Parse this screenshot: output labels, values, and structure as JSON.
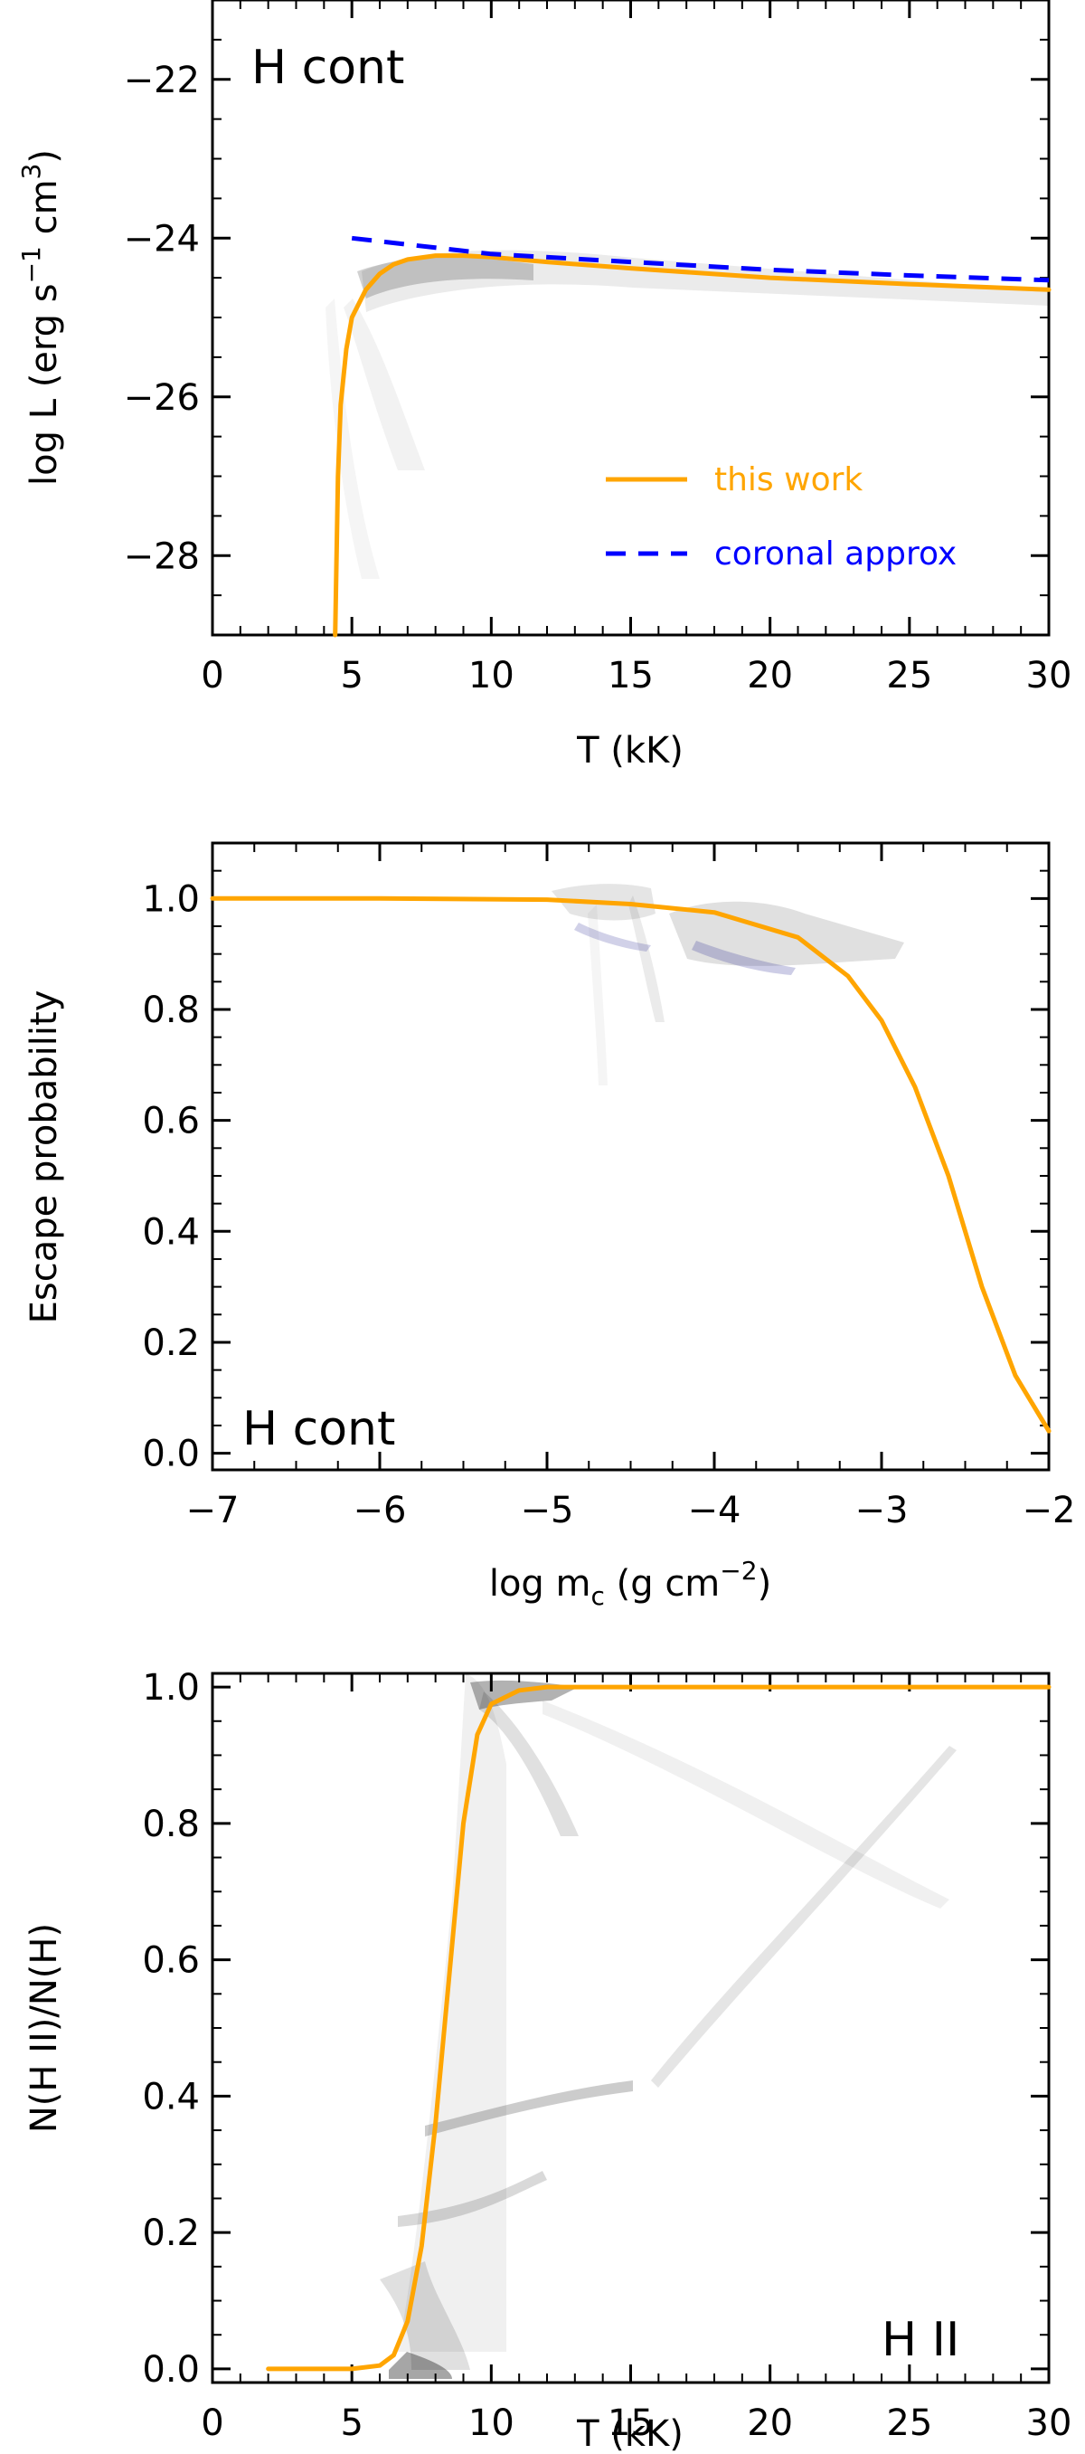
{
  "chart_data": [
    {
      "type": "line",
      "panel_label": "H cont",
      "xlabel": "T (kK)",
      "ylabel": "log L (erg s^-1 cm^3)",
      "ylabel_parts": {
        "pre": "log L (erg s",
        "sup1": "−1",
        "mid": " cm",
        "sup2": "3",
        "post": ")"
      },
      "xlim": [
        0,
        30
      ],
      "ylim": [
        -29,
        -21
      ],
      "x_ticks": [
        0,
        5,
        10,
        15,
        20,
        25,
        30
      ],
      "x_tick_labels": [
        "0",
        "5",
        "10",
        "15",
        "20",
        "25",
        "30"
      ],
      "y_ticks": [
        -28,
        -26,
        -24,
        -22
      ],
      "y_tick_labels": [
        "−28",
        "−26",
        "−24",
        "−22"
      ],
      "legend_position": "lower-right",
      "series": [
        {
          "name": "this work",
          "color": "#FFA500",
          "style": "solid",
          "x": [
            4.4,
            4.5,
            4.6,
            4.8,
            5.0,
            5.5,
            6.0,
            6.5,
            7.0,
            8.0,
            9.0,
            10.0,
            12.0,
            15.0,
            20.0,
            25.0,
            30.0
          ],
          "y": [
            -29.0,
            -27.0,
            -26.1,
            -25.4,
            -25.0,
            -24.65,
            -24.45,
            -24.33,
            -24.27,
            -24.22,
            -24.22,
            -24.24,
            -24.3,
            -24.38,
            -24.5,
            -24.58,
            -24.65
          ]
        },
        {
          "name": "coronal approx",
          "color": "#0000FF",
          "style": "dashed",
          "x": [
            5,
            10,
            15,
            20,
            25,
            30
          ],
          "y": [
            -24.0,
            -24.2,
            -24.3,
            -24.4,
            -24.47,
            -24.53
          ]
        }
      ]
    },
    {
      "type": "line",
      "panel_label": "H cont",
      "xlabel": "log m_c (g cm^-2)",
      "xlabel_parts": {
        "pre": "log m",
        "sub": "c",
        "mid": " (g cm",
        "sup": "−2",
        "post": ")"
      },
      "ylabel": "Escape probability",
      "xlim": [
        -7,
        -2
      ],
      "ylim": [
        -0.03,
        1.1
      ],
      "x_ticks": [
        -7,
        -6,
        -5,
        -4,
        -3,
        -2
      ],
      "x_tick_labels": [
        "−7",
        "−6",
        "−5",
        "−4",
        "−3",
        "−2"
      ],
      "y_ticks": [
        0.0,
        0.2,
        0.4,
        0.6,
        0.8,
        1.0
      ],
      "y_tick_labels": [
        "0.0",
        "0.2",
        "0.4",
        "0.6",
        "0.8",
        "1.0"
      ],
      "series": [
        {
          "color": "#FFA500",
          "style": "solid",
          "x": [
            -7.0,
            -6.0,
            -5.0,
            -4.5,
            -4.0,
            -3.5,
            -3.2,
            -3.0,
            -2.8,
            -2.6,
            -2.4,
            -2.2,
            -2.0
          ],
          "y": [
            1.0,
            1.0,
            0.998,
            0.99,
            0.975,
            0.93,
            0.86,
            0.78,
            0.66,
            0.5,
            0.3,
            0.14,
            0.04
          ]
        }
      ]
    },
    {
      "type": "line",
      "panel_label": "H II",
      "xlabel": "T (kK)",
      "ylabel": "N(H II)/N(H)",
      "xlim": [
        0,
        30
      ],
      "ylim": [
        -0.02,
        1.02
      ],
      "x_ticks": [
        0,
        5,
        10,
        15,
        20,
        25,
        30
      ],
      "x_tick_labels": [
        "0",
        "5",
        "10",
        "15",
        "20",
        "25",
        "30"
      ],
      "y_ticks": [
        0.0,
        0.2,
        0.4,
        0.6,
        0.8,
        1.0
      ],
      "y_tick_labels": [
        "0.0",
        "0.2",
        "0.4",
        "0.6",
        "0.8",
        "1.0"
      ],
      "series": [
        {
          "color": "#FFA500",
          "style": "solid",
          "x": [
            2.0,
            5.0,
            6.0,
            6.5,
            7.0,
            7.5,
            8.0,
            8.5,
            9.0,
            9.5,
            10.0,
            11.0,
            12.0,
            15.0,
            20.0,
            30.0
          ],
          "y": [
            0.0,
            0.0,
            0.005,
            0.02,
            0.07,
            0.18,
            0.36,
            0.58,
            0.8,
            0.93,
            0.975,
            0.995,
            1.0,
            1.0,
            1.0,
            1.0
          ]
        }
      ]
    }
  ]
}
